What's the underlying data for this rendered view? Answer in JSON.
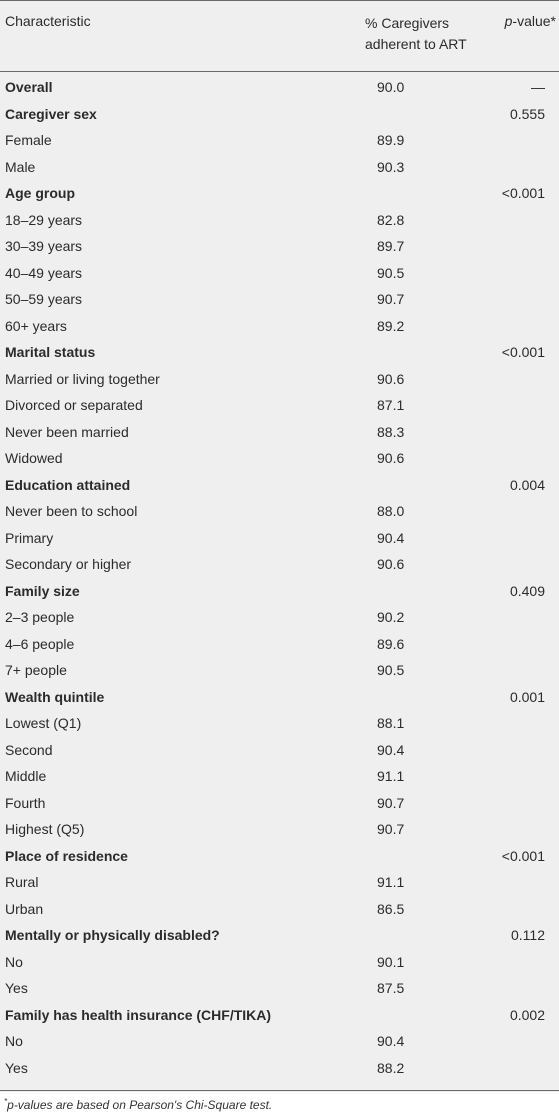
{
  "header": {
    "characteristic": "Characteristic",
    "adherent_line1": "% Caregivers",
    "adherent_line2": "adherent to ART",
    "pvalue_italic": "p",
    "pvalue_rest": "-value*"
  },
  "rows": [
    {
      "label": "Overall",
      "bold": true,
      "value": "90.0",
      "p": "—"
    },
    {
      "label": "Caregiver sex",
      "bold": true,
      "value": "",
      "p": "0.555"
    },
    {
      "label": "Female",
      "bold": false,
      "value": "89.9",
      "p": ""
    },
    {
      "label": "Male",
      "bold": false,
      "value": "90.3",
      "p": ""
    },
    {
      "label": "Age group",
      "bold": true,
      "value": "",
      "p": "<0.001"
    },
    {
      "label": "18–29 years",
      "bold": false,
      "value": "82.8",
      "p": ""
    },
    {
      "label": "30–39 years",
      "bold": false,
      "value": "89.7",
      "p": ""
    },
    {
      "label": "40–49 years",
      "bold": false,
      "value": "90.5",
      "p": ""
    },
    {
      "label": "50–59 years",
      "bold": false,
      "value": "90.7",
      "p": ""
    },
    {
      "label": "60+ years",
      "bold": false,
      "value": "89.2",
      "p": ""
    },
    {
      "label": "Marital status",
      "bold": true,
      "value": "",
      "p": "<0.001"
    },
    {
      "label": "Married or living together",
      "bold": false,
      "value": "90.6",
      "p": ""
    },
    {
      "label": "Divorced or separated",
      "bold": false,
      "value": "87.1",
      "p": ""
    },
    {
      "label": "Never been married",
      "bold": false,
      "value": "88.3",
      "p": ""
    },
    {
      "label": "Widowed",
      "bold": false,
      "value": "90.6",
      "p": ""
    },
    {
      "label": "Education attained",
      "bold": true,
      "value": "",
      "p": "0.004"
    },
    {
      "label": "Never been to school",
      "bold": false,
      "value": "88.0",
      "p": ""
    },
    {
      "label": "Primary",
      "bold": false,
      "value": "90.4",
      "p": ""
    },
    {
      "label": "Secondary or higher",
      "bold": false,
      "value": "90.6",
      "p": ""
    },
    {
      "label": "Family size",
      "bold": true,
      "value": "",
      "p": "0.409"
    },
    {
      "label": "2–3 people",
      "bold": false,
      "value": "90.2",
      "p": ""
    },
    {
      "label": "4–6 people",
      "bold": false,
      "value": "89.6",
      "p": ""
    },
    {
      "label": "7+ people",
      "bold": false,
      "value": "90.5",
      "p": ""
    },
    {
      "label": "Wealth quintile",
      "bold": true,
      "value": "",
      "p": "0.001"
    },
    {
      "label": "Lowest (Q1)",
      "bold": false,
      "value": "88.1",
      "p": ""
    },
    {
      "label": "Second",
      "bold": false,
      "value": "90.4",
      "p": ""
    },
    {
      "label": "Middle",
      "bold": false,
      "value": "91.1",
      "p": ""
    },
    {
      "label": "Fourth",
      "bold": false,
      "value": "90.7",
      "p": ""
    },
    {
      "label": "Highest (Q5)",
      "bold": false,
      "value": "90.7",
      "p": ""
    },
    {
      "label": "Place of residence",
      "bold": true,
      "value": "",
      "p": "<0.001"
    },
    {
      "label": "Rural",
      "bold": false,
      "value": "91.1",
      "p": ""
    },
    {
      "label": "Urban",
      "bold": false,
      "value": "86.5",
      "p": ""
    },
    {
      "label": "Mentally or physically disabled?",
      "bold": true,
      "value": "",
      "p": "0.112"
    },
    {
      "label": "No",
      "bold": false,
      "value": "90.1",
      "p": ""
    },
    {
      "label": "Yes",
      "bold": false,
      "value": "87.5",
      "p": ""
    },
    {
      "label": "Family has health insurance (CHF/TIKA)",
      "bold": true,
      "value": "",
      "p": "0.002"
    },
    {
      "label": "No",
      "bold": false,
      "value": "90.4",
      "p": ""
    },
    {
      "label": "Yes",
      "bold": false,
      "value": "88.2",
      "p": ""
    }
  ],
  "footnote": {
    "mark": "*",
    "italic_p": "p",
    "text": "-values are based on Pearson's Chi-Square test."
  }
}
